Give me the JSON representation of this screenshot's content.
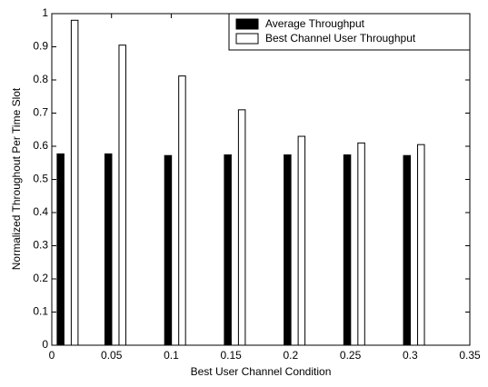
{
  "chart_data": {
    "type": "bar",
    "xlabel": "Best User Channel Condition",
    "ylabel": "Normalized Throughout Per Time Slot",
    "x": [
      0.01,
      0.05,
      0.1,
      0.15,
      0.2,
      0.25,
      0.3
    ],
    "series": [
      {
        "name": "Average Throughput",
        "color": "#000000",
        "values": [
          0.577,
          0.577,
          0.572,
          0.574,
          0.574,
          0.574,
          0.572
        ]
      },
      {
        "name": "Best Channel User Throughput",
        "color": "#ffffff",
        "values": [
          0.98,
          0.905,
          0.812,
          0.71,
          0.63,
          0.61,
          0.605
        ]
      }
    ],
    "xlim": [
      0,
      0.35
    ],
    "xticks": [
      0,
      0.05,
      0.1,
      0.15,
      0.2,
      0.25,
      0.3,
      0.35
    ],
    "ylim": [
      0,
      1
    ],
    "yticks": [
      0,
      0.1,
      0.2,
      0.3,
      0.4,
      0.5,
      0.6,
      0.7,
      0.8,
      0.9,
      1
    ],
    "legend": "upper right"
  }
}
